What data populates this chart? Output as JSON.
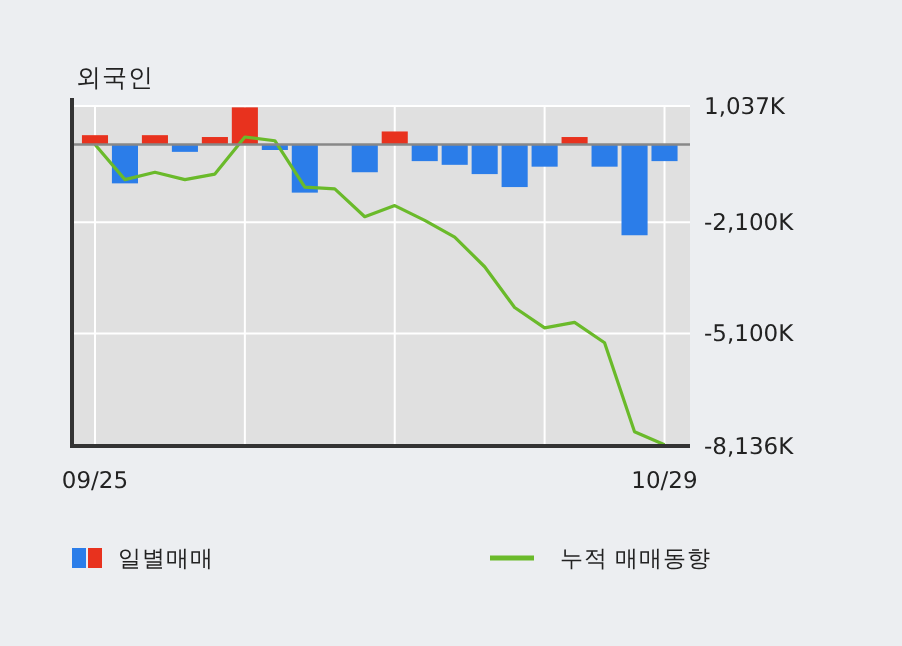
{
  "chart_data": {
    "type": "bar",
    "title": "외국인",
    "categories": [
      "09/25",
      null,
      null,
      null,
      null,
      null,
      null,
      null,
      null,
      null,
      null,
      null,
      null,
      null,
      null,
      null,
      null,
      null,
      null,
      "10/29"
    ],
    "series": [
      {
        "name": "일별매매",
        "colors": [
          "#e8321e",
          "#2b7de9",
          "#e8321e",
          "#2b7de9",
          "#e8321e",
          "#e8321e",
          "#2b7de9",
          "#2b7de9",
          "#2b7de9",
          "#2b7de9",
          "#e8321e",
          "#2b7de9",
          "#2b7de9",
          "#2b7de9",
          "#2b7de9",
          "#2b7de9",
          "#e8321e",
          "#2b7de9",
          "#2b7de9",
          "#2b7de9"
        ],
        "values": [
          250,
          -1050,
          250,
          -200,
          200,
          1000,
          -150,
          -1300,
          0,
          -750,
          350,
          -450,
          -550,
          -800,
          -1150,
          -600,
          200,
          -600,
          -2450,
          -450
        ]
      },
      {
        "type": "line",
        "name": "누적 매매동향",
        "color": "#6aba2a",
        "values": [
          0,
          -950,
          -750,
          -950,
          -800,
          200,
          100,
          -1150,
          -1200,
          -1950,
          -1650,
          -2050,
          -2500,
          -3300,
          -4400,
          -4950,
          -4800,
          -5350,
          -7750,
          -8100
        ]
      }
    ],
    "ylim": [
      -8136,
      1037
    ],
    "yticks": [
      {
        "value": 1037,
        "label": "1,037K"
      },
      {
        "value": -2100,
        "label": "-2,100K"
      },
      {
        "value": -5100,
        "label": "-5,100K"
      },
      {
        "value": -8136,
        "label": "-8,136K"
      }
    ],
    "ref_lines": [
      {
        "axis": "y",
        "value": 0,
        "color": "#888888"
      }
    ],
    "grid": true,
    "legend": "bottom"
  }
}
